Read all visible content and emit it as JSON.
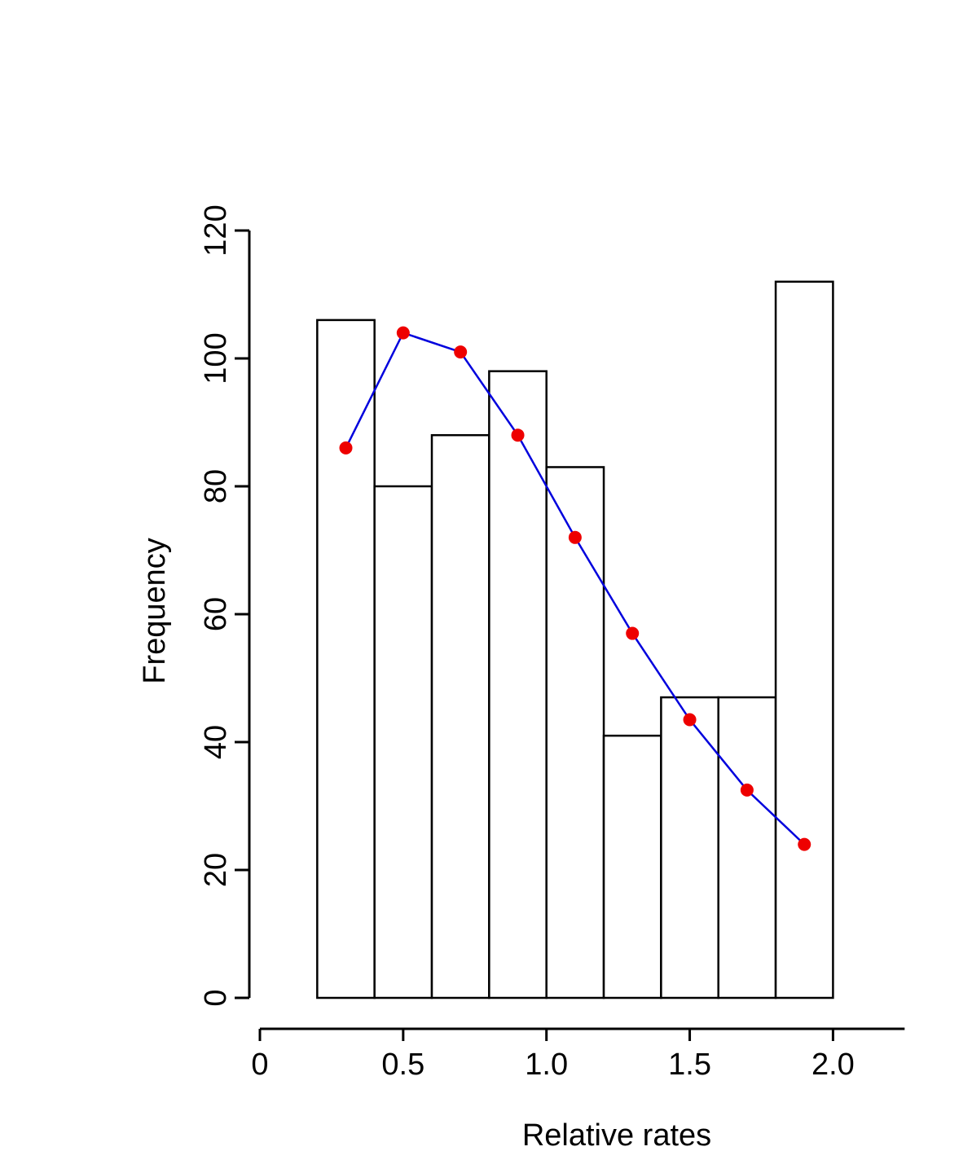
{
  "chart_data": {
    "type": "bar",
    "subtype": "histogram-with-expected-curve",
    "xlabel": "Relative rates",
    "ylabel": "Frequency",
    "xlim": [
      0,
      2.25
    ],
    "ylim": [
      0,
      120
    ],
    "x_ticks": [
      0,
      0.5,
      1.0,
      1.5,
      2.0
    ],
    "x_tick_labels": [
      "0",
      "0.5",
      "1.0",
      "1.5",
      "2.0"
    ],
    "y_ticks": [
      0,
      20,
      40,
      60,
      80,
      100,
      120
    ],
    "y_tick_labels": [
      "0",
      "20",
      "40",
      "60",
      "80",
      "100",
      "120"
    ],
    "bins": [
      {
        "from": 0.2,
        "to": 0.4,
        "value": 106
      },
      {
        "from": 0.4,
        "to": 0.6,
        "value": 80
      },
      {
        "from": 0.6,
        "to": 0.8,
        "value": 88
      },
      {
        "from": 0.8,
        "to": 1.0,
        "value": 98
      },
      {
        "from": 1.0,
        "to": 1.2,
        "value": 83
      },
      {
        "from": 1.2,
        "to": 1.4,
        "value": 41
      },
      {
        "from": 1.4,
        "to": 1.6,
        "value": 47
      },
      {
        "from": 1.6,
        "to": 1.8,
        "value": 47
      },
      {
        "from": 1.8,
        "to": 2.0,
        "value": 112
      }
    ],
    "curve": {
      "x": [
        0.3,
        0.5,
        0.7,
        0.9,
        1.1,
        1.3,
        1.5,
        1.7,
        1.9
      ],
      "y": [
        86,
        104,
        101,
        88,
        72,
        57,
        43.5,
        32.5,
        24
      ],
      "line_color": "#0000dd",
      "marker_color": "#ee0000"
    },
    "grid": false,
    "legend": "none"
  }
}
